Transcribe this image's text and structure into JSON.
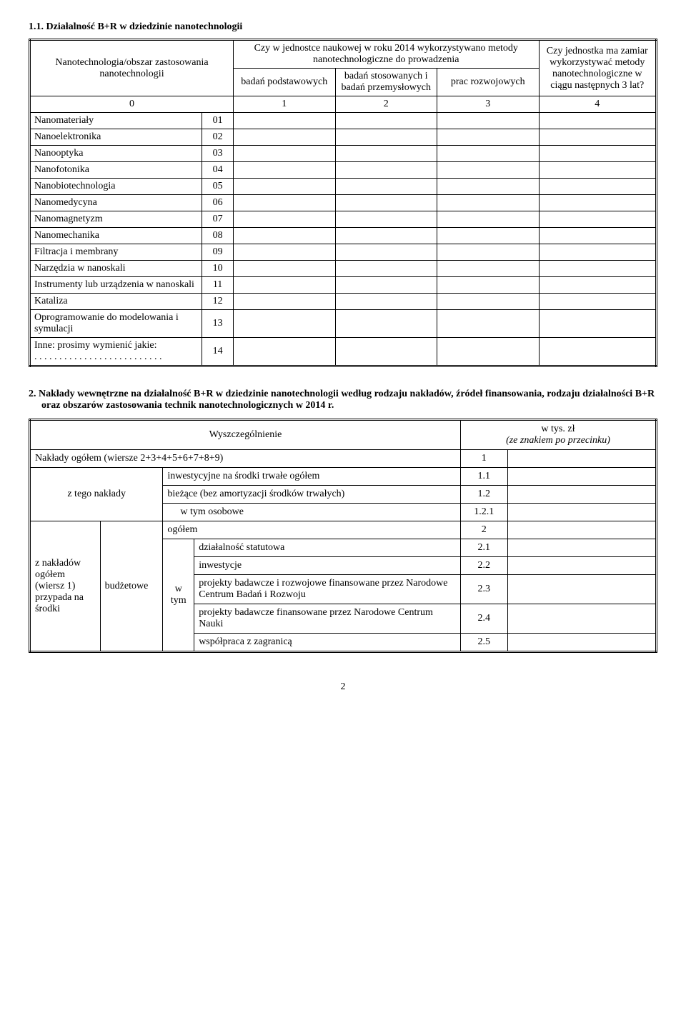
{
  "section1": {
    "title": "1.1. Działalność B+R w dziedzinie nanotechnologii",
    "row_header_label": "Nanotechnologia/obszar zastosowania nanotechnologii",
    "col_group_label": "Czy w jednostce naukowej w roku 2014 wykorzystywano metody nanotechnologiczne do prowadzenia",
    "col_labels": {
      "c1": "badań podstawowych",
      "c2": "badań stosowanych i badań przemysłowych",
      "c3": "prac rozwojowych",
      "c4": "Czy jednostka ma zamiar wykorzystywać metody nanotechnologiczne w ciągu następnych 3 lat?"
    },
    "col_nums": {
      "c0": "0",
      "c1": "1",
      "c2": "2",
      "c3": "3",
      "c4": "4"
    },
    "rows": [
      {
        "label": "Nanomateriały",
        "code": "01"
      },
      {
        "label": "Nanoelektronika",
        "code": "02"
      },
      {
        "label": "Nanooptyka",
        "code": "03"
      },
      {
        "label": "Nanofotonika",
        "code": "04"
      },
      {
        "label": "Nanobiotechnologia",
        "code": "05"
      },
      {
        "label": "Nanomedycyna",
        "code": "06"
      },
      {
        "label": "Nanomagnetyzm",
        "code": "07"
      },
      {
        "label": "Nanomechanika",
        "code": "08"
      },
      {
        "label": "Filtracja i membrany",
        "code": "09"
      },
      {
        "label": "Narzędzia w nanoskali",
        "code": "10"
      },
      {
        "label": "Instrumenty lub urządzenia w nanoskali",
        "code": "11"
      },
      {
        "label": "Kataliza",
        "code": "12"
      },
      {
        "label": "Oprogramowanie do modelowania i symulacji",
        "code": "13"
      },
      {
        "label": "Inne: prosimy wymienić jakie:",
        "code": "14"
      }
    ],
    "dotted_line": ". . . . . . . . . . . . . . . . . . . . . . . . . ."
  },
  "section2": {
    "title": "2.  Nakłady wewnętrzne na działalność B+R w dziedzinie nanotechnologii według rodzaju nakładów, źródeł finansowania, rodzaju działalności B+R oraz obszarów zastosowania technik nanotechnologicznych w 2014 r.",
    "spec_label": "Wyszczególnienie",
    "value_label_line1": "w tys. zł",
    "value_label_line2": "(ze znakiem po przecinku)",
    "rows": [
      {
        "label": "Nakłady ogółem (wiersze 2+3+4+5+6+7+8+9)",
        "num": "1"
      }
    ],
    "ztego_label": "z tego nakłady",
    "ztego_rows": [
      {
        "label": "inwestycyjne na środki trwałe ogółem",
        "num": "1.1"
      },
      {
        "label": "bieżące (bez amortyzacji środków trwałych)",
        "num": "1.2"
      },
      {
        "label": "w tym osobowe",
        "num": "1.2.1",
        "indent": true
      }
    ],
    "bottom_left1": "z nakładów ogółem (wiersz 1) przypada na środki",
    "bottom_left2": "budżetowe",
    "ogolem_label": "ogółem",
    "ogolem_num": "2",
    "wtym_label": "w tym",
    "wtym_rows": [
      {
        "label": "działalność statutowa",
        "num": "2.1"
      },
      {
        "label": "inwestycje",
        "num": "2.2"
      },
      {
        "label": "projekty badawcze i rozwojowe finansowane przez Narodowe Centrum Badań i Rozwoju",
        "num": "2.3"
      },
      {
        "label": "projekty badawcze finansowane przez Narodowe Centrum Nauki",
        "num": "2.4"
      },
      {
        "label": "współpraca z zagranicą",
        "num": "2.5"
      }
    ]
  },
  "page_number": "2",
  "layout": {
    "tbl1_col_widths": [
      "220px",
      "40px",
      "130px",
      "130px",
      "130px",
      "150px"
    ],
    "tbl2_col_widths": [
      "90px",
      "80px",
      "40px",
      "340px",
      "60px",
      "190px"
    ]
  }
}
